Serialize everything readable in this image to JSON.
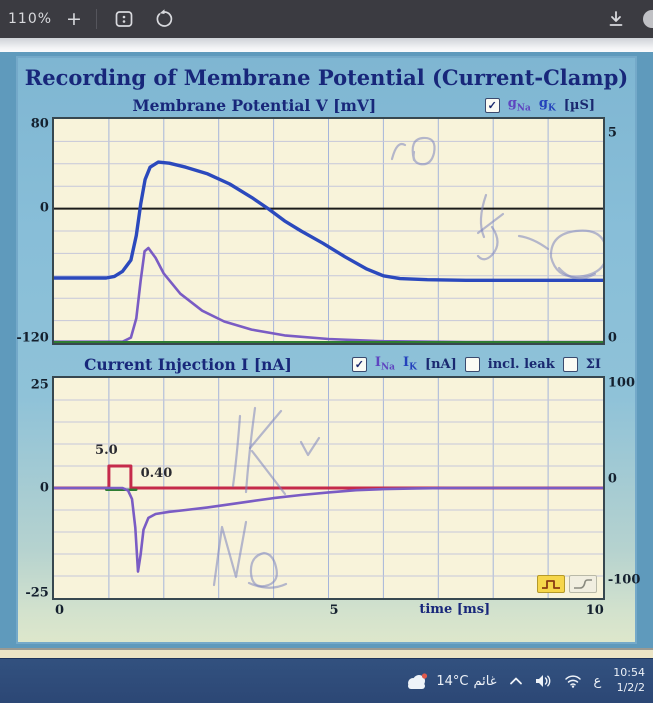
{
  "toolbar": {
    "zoom_level": "110%",
    "plus_label": "+"
  },
  "app": {
    "title": "Recording of Membrane Potential (Current-Clamp)"
  },
  "chart_data": [
    {
      "type": "line",
      "title": "Membrane Potential V [mV]",
      "legend": {
        "check_glyph": "✓",
        "checked": true,
        "g_base": "g",
        "na_sub": "Na",
        "k_sub": "K",
        "unit": "[µS]"
      },
      "x_range": [
        0,
        10
      ],
      "x_step": 1,
      "zero_black": true,
      "grid_v": "#a6b5da",
      "grid_h": "#c6c7d9",
      "left_axis": {
        "range": [
          -120,
          80
        ],
        "step": 20,
        "ticks": [
          80,
          0,
          -120
        ],
        "tick_labels": [
          "80",
          "0",
          "-120"
        ]
      },
      "right_axis": {
        "range": [
          0,
          5
        ],
        "ticks": [
          5,
          0
        ],
        "tick_labels": [
          "5",
          "0"
        ]
      },
      "series": [
        {
          "name": "membrane-potential-V",
          "color": "#2b49bd",
          "width": 3.4,
          "axis": "left",
          "points": [
            [
              0,
              -62
            ],
            [
              0.95,
              -62
            ],
            [
              1.1,
              -60.5
            ],
            [
              1.25,
              -56
            ],
            [
              1.4,
              -46
            ],
            [
              1.5,
              -24
            ],
            [
              1.58,
              4
            ],
            [
              1.66,
              26
            ],
            [
              1.75,
              37
            ],
            [
              1.9,
              41.5
            ],
            [
              2.1,
              40.5
            ],
            [
              2.4,
              37
            ],
            [
              2.8,
              31
            ],
            [
              3.2,
              22
            ],
            [
              3.6,
              10
            ],
            [
              3.9,
              0
            ],
            [
              4.2,
              -11
            ],
            [
              4.5,
              -20
            ],
            [
              4.9,
              -31
            ],
            [
              5.3,
              -43
            ],
            [
              5.7,
              -54
            ],
            [
              6.0,
              -60
            ],
            [
              6.3,
              -62.5
            ],
            [
              6.8,
              -63.5
            ],
            [
              7.5,
              -64
            ],
            [
              10,
              -64
            ]
          ]
        },
        {
          "name": "gNa-conductance",
          "color": "#7a5cc4",
          "width": 2.6,
          "axis": "right",
          "points": [
            [
              0,
              0.03
            ],
            [
              1.25,
              0.03
            ],
            [
              1.4,
              0.12
            ],
            [
              1.5,
              0.55
            ],
            [
              1.58,
              1.4
            ],
            [
              1.65,
              2.05
            ],
            [
              1.72,
              2.12
            ],
            [
              1.85,
              1.9
            ],
            [
              2.0,
              1.55
            ],
            [
              2.3,
              1.1
            ],
            [
              2.7,
              0.72
            ],
            [
              3.1,
              0.48
            ],
            [
              3.6,
              0.3
            ],
            [
              4.2,
              0.17
            ],
            [
              5.0,
              0.09
            ],
            [
              6.0,
              0.04
            ],
            [
              7.5,
              0.02
            ],
            [
              10,
              0.02
            ]
          ]
        },
        {
          "name": "gK-conductance",
          "color": "#2e7d32",
          "width": 2.2,
          "axis": "right",
          "points": [
            [
              0,
              0.02
            ],
            [
              10,
              0.02
            ]
          ]
        }
      ]
    },
    {
      "type": "line",
      "title": "Current Injection I [nA]",
      "legend": {
        "check_glyph": "✓",
        "checked": true,
        "i_base": "I",
        "na_sub": "Na",
        "k_sub": "K",
        "unit": "[nA]",
        "leak_label": "incl. leak",
        "leak_checked": false,
        "sum_label": "ΣI",
        "sum_checked": false
      },
      "x_range": [
        0,
        10
      ],
      "x_step": 1,
      "zero_black": false,
      "grid_v": "#a6b5da",
      "grid_h": "#c6c7d9",
      "left_axis": {
        "range": [
          -25,
          25
        ],
        "step": 5,
        "ticks": [
          25,
          0,
          -25
        ],
        "tick_labels": [
          "25",
          "0",
          "-25"
        ]
      },
      "right_axis": {
        "range": [
          -100,
          100
        ],
        "ticks": [
          100,
          0,
          -100
        ],
        "tick_labels": [
          "100",
          "0",
          "-100"
        ]
      },
      "x_axis": {
        "tick_labels": [
          "0",
          "5",
          "10"
        ],
        "label": "time [ms]"
      },
      "annotations": [
        {
          "text": "5.0"
        },
        {
          "text": "0.40"
        }
      ],
      "stimulus_amplitude_nA": 5.0,
      "stimulus_duration_ms": 0.4,
      "series": [
        {
          "name": "injected-current",
          "color": "#c52a4b",
          "width": 3.0,
          "axis": "left",
          "points": [
            [
              0,
              0
            ],
            [
              1,
              0
            ],
            [
              1,
              5
            ],
            [
              1.4,
              5
            ],
            [
              1.4,
              0
            ],
            [
              10,
              0
            ]
          ]
        },
        {
          "name": "leak-current",
          "color": "#2e7d32",
          "width": 2.4,
          "axis": "left",
          "points": [
            [
              0.95,
              -0.4
            ],
            [
              1.5,
              -0.4
            ]
          ]
        },
        {
          "name": "INa-current",
          "color": "#7a5cc4",
          "width": 2.6,
          "axis": "left",
          "points": [
            [
              0,
              0
            ],
            [
              1.25,
              0
            ],
            [
              1.35,
              -0.6
            ],
            [
              1.42,
              -2.5
            ],
            [
              1.48,
              -9
            ],
            [
              1.53,
              -19
            ],
            [
              1.58,
              -15
            ],
            [
              1.63,
              -9.5
            ],
            [
              1.72,
              -6.8
            ],
            [
              1.85,
              -5.9
            ],
            [
              2.1,
              -5.4
            ],
            [
              2.4,
              -5.0
            ],
            [
              2.8,
              -4.4
            ],
            [
              3.2,
              -3.7
            ],
            [
              3.6,
              -3.0
            ],
            [
              4.0,
              -2.3
            ],
            [
              4.5,
              -1.6
            ],
            [
              5.0,
              -1.0
            ],
            [
              5.5,
              -0.5
            ],
            [
              6.0,
              -0.25
            ],
            [
              6.6,
              -0.1
            ],
            [
              7.2,
              0
            ],
            [
              10,
              0
            ]
          ]
        }
      ]
    }
  ],
  "taskbar": {
    "temperature": "14°C",
    "condition": "غائم",
    "language": "ع",
    "time": "10:54",
    "date": "1/2/2"
  }
}
